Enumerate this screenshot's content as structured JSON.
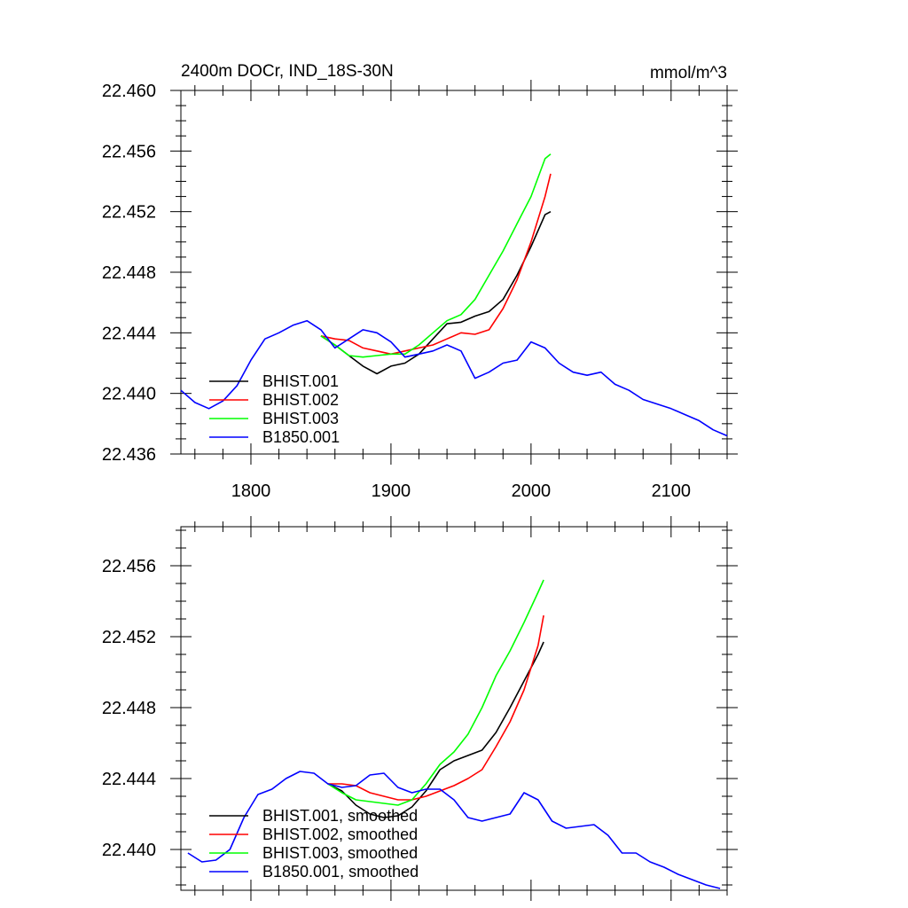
{
  "chart_data": [
    {
      "type": "line",
      "title": "2400m DOCr, IND_18S-30N",
      "units": "mmol/m^3",
      "xlim": [
        1750,
        2140
      ],
      "ylim": [
        22.436,
        22.46
      ],
      "xticks": [
        "1800",
        "1900",
        "2000",
        "2100"
      ],
      "yticks": [
        "22.436",
        "22.440",
        "22.444",
        "22.448",
        "22.452",
        "22.456",
        "22.460"
      ],
      "legend_position": "bottom-left",
      "series": [
        {
          "name": "BHIST.001",
          "color": "#000000",
          "x": [
            1850,
            1860,
            1870,
            1880,
            1890,
            1900,
            1910,
            1920,
            1930,
            1940,
            1950,
            1960,
            1970,
            1980,
            1990,
            2000,
            2010,
            2014
          ],
          "y": [
            22.4438,
            22.4432,
            22.4425,
            22.4418,
            22.4413,
            22.4418,
            22.442,
            22.4426,
            22.4436,
            22.4446,
            22.4447,
            22.4451,
            22.4454,
            22.4462,
            22.4478,
            22.4497,
            22.4518,
            22.452
          ]
        },
        {
          "name": "BHIST.002",
          "color": "#ff0000",
          "x": [
            1850,
            1860,
            1870,
            1880,
            1890,
            1900,
            1910,
            1920,
            1930,
            1940,
            1950,
            1960,
            1970,
            1980,
            1990,
            2000,
            2010,
            2014
          ],
          "y": [
            22.4438,
            22.4436,
            22.4435,
            22.443,
            22.4428,
            22.4426,
            22.4428,
            22.443,
            22.4432,
            22.4436,
            22.444,
            22.4439,
            22.4442,
            22.4456,
            22.4475,
            22.45,
            22.453,
            22.4545
          ]
        },
        {
          "name": "BHIST.003",
          "color": "#00ff00",
          "x": [
            1850,
            1860,
            1870,
            1880,
            1890,
            1900,
            1910,
            1920,
            1930,
            1940,
            1950,
            1960,
            1970,
            1980,
            1990,
            2000,
            2010,
            2014
          ],
          "y": [
            22.4438,
            22.4432,
            22.4425,
            22.4424,
            22.4425,
            22.4426,
            22.4426,
            22.4432,
            22.444,
            22.4448,
            22.4452,
            22.4462,
            22.4478,
            22.4494,
            22.4512,
            22.453,
            22.4555,
            22.4558
          ]
        },
        {
          "name": "B1850.001",
          "color": "#0000ff",
          "x": [
            1750,
            1760,
            1770,
            1780,
            1790,
            1800,
            1810,
            1820,
            1830,
            1840,
            1850,
            1860,
            1870,
            1880,
            1890,
            1900,
            1910,
            1920,
            1930,
            1940,
            1950,
            1960,
            1970,
            1980,
            1990,
            2000,
            2010,
            2020,
            2030,
            2040,
            2050,
            2060,
            2070,
            2080,
            2090,
            2100,
            2110,
            2120,
            2130,
            2140
          ],
          "y": [
            22.4402,
            22.4394,
            22.439,
            22.4395,
            22.4405,
            22.4422,
            22.4436,
            22.444,
            22.4445,
            22.4448,
            22.4442,
            22.443,
            22.4436,
            22.4442,
            22.444,
            22.4434,
            22.4424,
            22.4426,
            22.4428,
            22.4432,
            22.4428,
            22.441,
            22.4414,
            22.442,
            22.4422,
            22.4434,
            22.443,
            22.442,
            22.4414,
            22.4412,
            22.4414,
            22.4406,
            22.4402,
            22.4396,
            22.4393,
            22.439,
            22.4386,
            22.4382,
            22.4376,
            22.4372
          ]
        }
      ]
    },
    {
      "type": "line",
      "xlim": [
        1750,
        2140
      ],
      "ylim": [
        22.4377,
        22.4582
      ],
      "xticks": [
        "",
        "",
        "",
        ""
      ],
      "yticks": [
        "22.440",
        "22.444",
        "22.448",
        "22.452",
        "22.456"
      ],
      "legend_position": "bottom-left",
      "series": [
        {
          "name": "BHIST.001, smoothed",
          "color": "#000000",
          "x": [
            1855,
            1865,
            1875,
            1885,
            1895,
            1905,
            1915,
            1925,
            1935,
            1945,
            1955,
            1965,
            1975,
            1985,
            1995,
            2005,
            2009
          ],
          "y": [
            22.4437,
            22.4433,
            22.4425,
            22.442,
            22.4418,
            22.4419,
            22.4424,
            22.4433,
            22.4445,
            22.445,
            22.4453,
            22.4456,
            22.4466,
            22.448,
            22.4495,
            22.451,
            22.4517
          ]
        },
        {
          "name": "BHIST.002, smoothed",
          "color": "#ff0000",
          "x": [
            1855,
            1865,
            1875,
            1885,
            1895,
            1905,
            1915,
            1925,
            1935,
            1945,
            1955,
            1965,
            1975,
            1985,
            1995,
            2005,
            2009
          ],
          "y": [
            22.4437,
            22.4437,
            22.4436,
            22.4432,
            22.443,
            22.4428,
            22.4428,
            22.443,
            22.4433,
            22.4436,
            22.444,
            22.4445,
            22.4458,
            22.4472,
            22.449,
            22.4515,
            22.4532
          ]
        },
        {
          "name": "BHIST.003, smoothed",
          "color": "#00ff00",
          "x": [
            1855,
            1865,
            1875,
            1885,
            1895,
            1905,
            1915,
            1925,
            1935,
            1945,
            1955,
            1965,
            1975,
            1985,
            1995,
            2005,
            2009
          ],
          "y": [
            22.4437,
            22.4432,
            22.4428,
            22.4427,
            22.4426,
            22.4425,
            22.4428,
            22.4437,
            22.4448,
            22.4455,
            22.4465,
            22.448,
            22.4498,
            22.4512,
            22.4528,
            22.4545,
            22.4552
          ]
        },
        {
          "name": "B1850.001, smoothed",
          "color": "#0000ff",
          "x": [
            1755,
            1765,
            1775,
            1785,
            1795,
            1805,
            1815,
            1825,
            1835,
            1845,
            1855,
            1865,
            1875,
            1885,
            1895,
            1905,
            1915,
            1925,
            1935,
            1945,
            1955,
            1965,
            1975,
            1985,
            1995,
            2005,
            2015,
            2025,
            2035,
            2045,
            2055,
            2065,
            2075,
            2085,
            2095,
            2105,
            2115,
            2125,
            2135
          ],
          "y": [
            22.4398,
            22.4393,
            22.4394,
            22.44,
            22.4418,
            22.4431,
            22.4434,
            22.444,
            22.4444,
            22.4443,
            22.4437,
            22.4435,
            22.4436,
            22.4442,
            22.4443,
            22.4435,
            22.4432,
            22.4434,
            22.4434,
            22.4428,
            22.4418,
            22.4416,
            22.4418,
            22.442,
            22.4432,
            22.4428,
            22.4416,
            22.4412,
            22.4413,
            22.4414,
            22.4408,
            22.4398,
            22.4398,
            22.4393,
            22.439,
            22.4386,
            22.4383,
            22.438,
            22.4378
          ]
        }
      ]
    }
  ]
}
